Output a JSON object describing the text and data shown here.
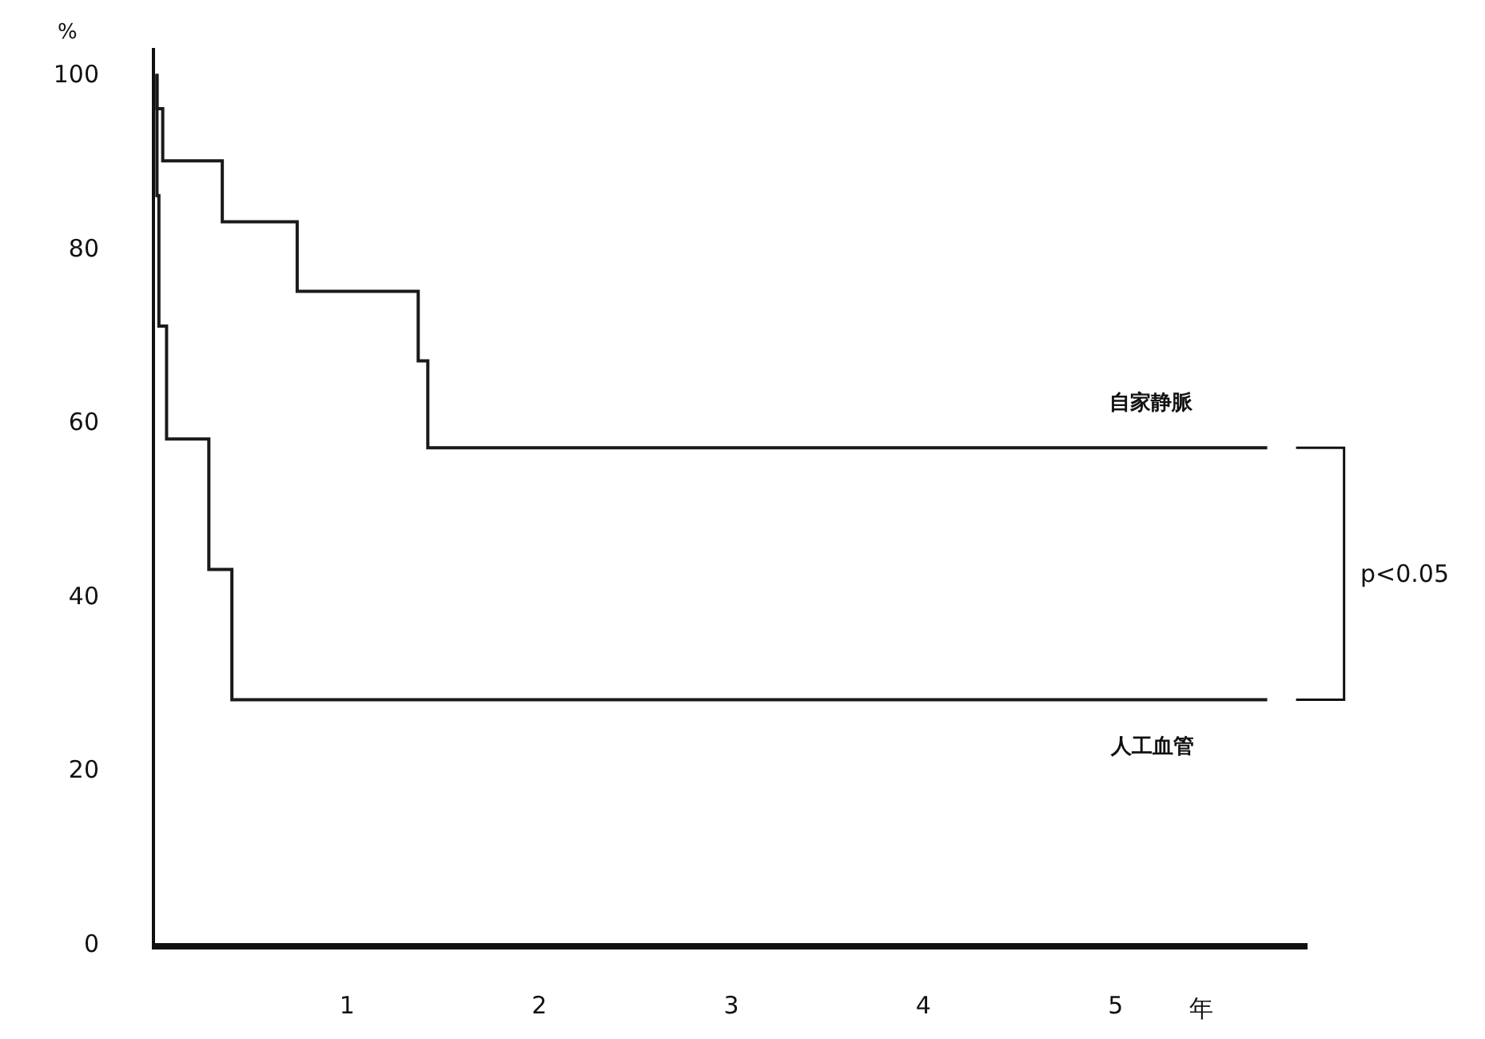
{
  "chart_data": {
    "type": "step",
    "xlabel": "年",
    "ylabel": "%",
    "series": [
      {
        "name": "自家静脈",
        "color": "#1a1a1a",
        "x": [
          0.01,
          0.04,
          0.35,
          0.74,
          1.37,
          1.42,
          5.79
        ],
        "values": [
          100,
          96,
          90,
          83,
          75,
          67,
          57
        ]
      },
      {
        "name": "人工血管",
        "color": "#1a1a1a",
        "x": [
          0.01,
          0.02,
          0.06,
          0.28,
          0.4,
          5.79
        ],
        "values": [
          100,
          86,
          71,
          58,
          43,
          28
        ]
      }
    ],
    "xlim": [
      0,
      6
    ],
    "xticks": [
      1,
      2,
      3,
      4,
      5
    ],
    "ylim": [
      0,
      103
    ],
    "yticks": [
      0,
      20,
      40,
      60,
      80,
      100
    ],
    "annotations": [
      "p<0.05"
    ],
    "grid": false,
    "legend": false,
    "marker": "none",
    "line_style": "solid"
  }
}
